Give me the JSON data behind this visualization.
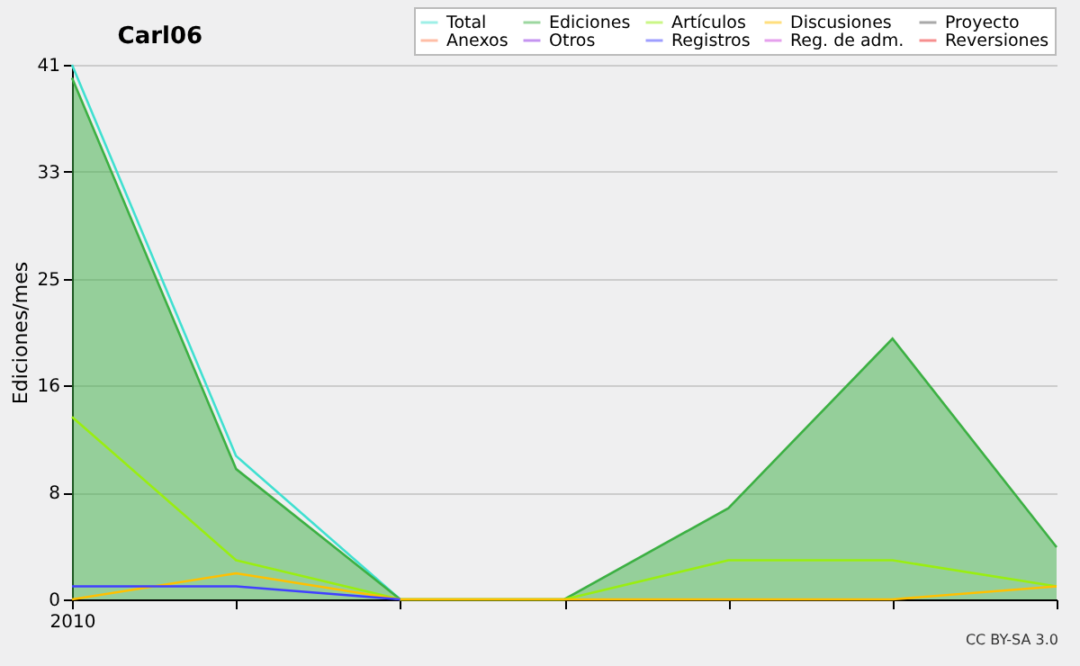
{
  "chart_data": {
    "type": "line",
    "title": "Carl06",
    "ylabel": "Ediciones/mes",
    "categories": [
      "2010",
      null,
      null,
      null,
      null,
      null,
      null
    ],
    "ylim": [
      0,
      41
    ],
    "yticks": [
      0,
      {
        "value": 8.2,
        "label": "8"
      },
      {
        "value": 16.4,
        "label": "16"
      },
      {
        "value": 24.6,
        "label": "25"
      },
      {
        "value": 32.8,
        "label": "33"
      },
      41
    ],
    "grid": "y",
    "legend": "top right",
    "annotations": [
      "CC BY-SA 3.0"
    ],
    "series": [
      {
        "name": "Total",
        "color": "#40e0d0",
        "values": [
          41,
          11,
          0,
          null,
          null,
          null,
          null
        ]
      },
      {
        "name": "Ediciones",
        "type": "area",
        "color": "#3cb043",
        "values": [
          40,
          10,
          0,
          0,
          7,
          20,
          4
        ]
      },
      {
        "name": "Artículos",
        "color": "#99ee11",
        "values": [
          14,
          3,
          0,
          0,
          3,
          3,
          1
        ]
      },
      {
        "name": "Discusiones",
        "color": "#ffc000",
        "values": [
          0,
          2,
          0,
          0,
          0,
          0,
          1
        ]
      },
      {
        "name": "Proyecto",
        "color": "#555555",
        "values": [
          null,
          null,
          null,
          null,
          null,
          null,
          null
        ]
      },
      {
        "name": "Anexos",
        "color": "#ff7f50",
        "values": [
          null,
          null,
          null,
          null,
          null,
          null,
          null
        ]
      },
      {
        "name": "Otros",
        "color": "#8a2be2",
        "values": [
          null,
          null,
          null,
          null,
          null,
          null,
          null
        ]
      },
      {
        "name": "Registros",
        "color": "#4040ff",
        "values": [
          1,
          1,
          0,
          null,
          null,
          null,
          null
        ]
      },
      {
        "name": "Reg. de adm.",
        "color": "#cc44dd",
        "values": [
          null,
          null,
          null,
          null,
          null,
          null,
          null
        ]
      },
      {
        "name": "Reversiones",
        "color": "#ee2222",
        "values": [
          null,
          null,
          null,
          null,
          null,
          null,
          null
        ]
      }
    ]
  }
}
